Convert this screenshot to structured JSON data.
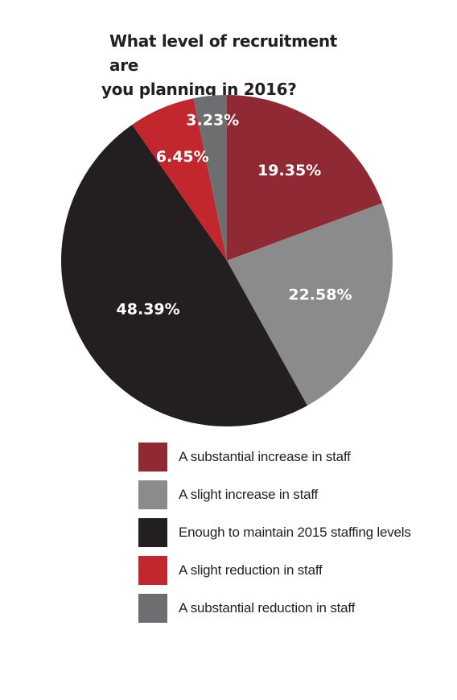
{
  "chart_data": {
    "type": "pie",
    "title": "What level of recruitment are you planning in 2016?",
    "title_lines": [
      "What level of recruitment are",
      "you planning in 2016?"
    ],
    "slices": [
      {
        "name": "A substantial increase in staff",
        "value": 19.35,
        "label": "19.35%",
        "color": "#8f2a34"
      },
      {
        "name": "A slight increase in staff",
        "value": 22.58,
        "label": "22.58%",
        "color": "#8b8b8b"
      },
      {
        "name": "Enough to maintain 2015 staffing levels",
        "value": 48.39,
        "label": "48.39%",
        "color": "#231f20"
      },
      {
        "name": "A slight reduction in staff",
        "value": 6.45,
        "label": "6.45%",
        "color": "#c1272d"
      },
      {
        "name": "A substantial reduction in staff",
        "value": 3.23,
        "label": "3.23%",
        "color": "#6d6e70"
      }
    ],
    "legend_placement": "bottom"
  }
}
